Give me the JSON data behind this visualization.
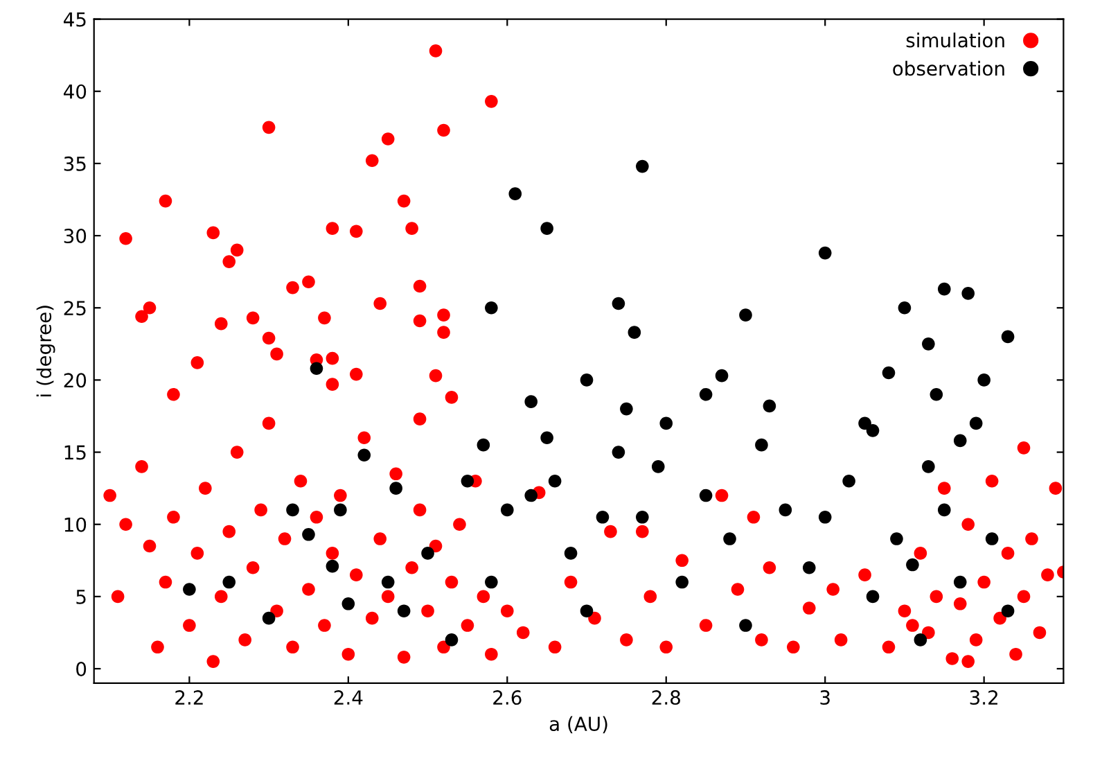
{
  "chart_data": {
    "type": "scatter",
    "xlabel": "a (AU)",
    "ylabel": "i (degree)",
    "xlim": [
      2.08,
      3.3
    ],
    "ylim": [
      -1,
      45
    ],
    "xticks": [
      2.2,
      2.4,
      2.6,
      2.8,
      {
        "value": 3,
        "label": "3"
      },
      3.2
    ],
    "yticks": [
      0,
      5,
      10,
      15,
      20,
      25,
      30,
      35,
      40,
      45
    ],
    "grid": false,
    "legend": "top right",
    "marker": "circle",
    "series": [
      {
        "name": "simulation",
        "color": "#ff0000",
        "x": [
          2.17,
          2.12,
          2.23,
          2.3,
          2.26,
          2.25,
          2.14,
          2.15,
          2.18,
          2.21,
          2.24,
          2.28,
          2.3,
          2.31,
          2.33,
          2.35,
          2.36,
          2.37,
          2.38,
          2.38,
          2.41,
          2.41,
          2.38,
          2.43,
          2.45,
          2.47,
          2.48,
          2.51,
          2.52,
          2.58,
          2.44,
          2.49,
          2.49,
          2.52,
          2.52,
          2.51,
          2.53,
          2.49,
          2.1,
          2.11,
          2.12,
          2.14,
          2.15,
          2.16,
          2.17,
          2.18,
          2.2,
          2.21,
          2.22,
          2.23,
          2.24,
          2.25,
          2.26,
          2.27,
          2.28,
          2.29,
          2.3,
          2.31,
          2.32,
          2.33,
          2.34,
          2.35,
          2.36,
          2.37,
          2.38,
          2.39,
          2.4,
          2.41,
          2.42,
          2.43,
          2.44,
          2.45,
          2.46,
          2.47,
          2.48,
          2.49,
          2.5,
          2.51,
          2.52,
          2.53,
          2.54,
          2.55,
          2.56,
          2.57,
          2.58,
          2.6,
          2.62,
          2.64,
          2.66,
          2.68,
          2.71,
          2.73,
          2.75,
          2.77,
          2.78,
          2.8,
          2.82,
          2.85,
          2.87,
          2.89,
          2.91,
          2.92,
          2.93,
          2.96,
          2.98,
          3.01,
          3.02,
          3.05,
          3.08,
          3.1,
          3.12,
          3.13,
          3.14,
          3.15,
          3.16,
          3.17,
          3.18,
          3.19,
          3.2,
          3.21,
          3.22,
          3.23,
          3.24,
          3.25,
          3.26,
          3.27,
          3.28,
          3.29,
          3.3,
          3.25,
          3.18,
          3.11
        ],
        "values": [
          32.4,
          29.8,
          30.2,
          37.5,
          29,
          28.2,
          24.4,
          25,
          19,
          21.2,
          23.9,
          24.3,
          22.9,
          21.8,
          26.4,
          26.8,
          21.4,
          24.3,
          21.5,
          19.7,
          20.4,
          30.3,
          30.5,
          35.2,
          36.7,
          32.4,
          30.5,
          42.8,
          37.3,
          39.3,
          25.3,
          26.5,
          24.1,
          24.5,
          23.3,
          20.3,
          18.8,
          17.3,
          12,
          5,
          10,
          14,
          8.5,
          1.5,
          6,
          10.5,
          3,
          8,
          12.5,
          0.5,
          5,
          9.5,
          15,
          2,
          7,
          11,
          17,
          4,
          9,
          1.5,
          13,
          5.5,
          10.5,
          3,
          8,
          12,
          1,
          6.5,
          16,
          3.5,
          9,
          5,
          13.5,
          0.8,
          7,
          11,
          4,
          8.5,
          1.5,
          6,
          10,
          3,
          13,
          5,
          1,
          4,
          2.5,
          12.2,
          1.5,
          6,
          3.5,
          9.5,
          2,
          9.5,
          5,
          1.5,
          7.5,
          3,
          12,
          5.5,
          10.5,
          2,
          7,
          1.5,
          4.2,
          5.5,
          2,
          6.5,
          1.5,
          4,
          8,
          2.5,
          5,
          12.5,
          0.7,
          4.5,
          10,
          2,
          6,
          13,
          3.5,
          8,
          1,
          5,
          9,
          2.5,
          6.5,
          12.5,
          6.7,
          15.3,
          0.5,
          3
        ]
      },
      {
        "name": "observation",
        "color": "#000000",
        "x": [
          2.77,
          2.61,
          2.65,
          3.0,
          3.15,
          3.18,
          2.74,
          2.76,
          2.9,
          3.1,
          2.87,
          2.58,
          2.63,
          2.7,
          2.75,
          2.8,
          2.85,
          2.93,
          3.05,
          3.08,
          3.14,
          3.2,
          3.13,
          3.17,
          2.36,
          2.42,
          2.38,
          2.35,
          2.39,
          2.4,
          2.45,
          2.47,
          2.5,
          2.55,
          2.58,
          2.6,
          2.63,
          2.66,
          2.68,
          2.7,
          2.72,
          2.77,
          2.79,
          2.82,
          2.85,
          2.88,
          2.9,
          2.95,
          2.98,
          3.0,
          3.03,
          3.06,
          3.09,
          3.11,
          3.12,
          3.13,
          3.15,
          3.17,
          3.19,
          3.21,
          3.23,
          2.25,
          2.3,
          2.33,
          2.53,
          2.57,
          2.65,
          2.74,
          2.92,
          3.06,
          3.23,
          2.46,
          2.2
        ],
        "values": [
          34.8,
          32.9,
          30.5,
          28.8,
          26.3,
          26,
          25.3,
          23.3,
          24.5,
          25,
          20.3,
          25,
          18.5,
          20,
          18,
          17,
          19,
          18.2,
          17,
          20.5,
          19,
          20,
          22.5,
          15.8,
          20.8,
          14.8,
          7.1,
          9.3,
          11,
          4.5,
          6,
          4,
          8,
          13,
          6,
          11,
          12,
          13,
          8,
          4,
          10.5,
          10.5,
          14,
          6,
          12,
          9,
          3,
          11,
          7,
          10.5,
          13,
          5,
          9,
          7.2,
          2,
          14,
          11,
          6,
          17,
          9,
          4,
          6,
          3.5,
          11,
          2,
          15.5,
          16,
          15,
          15.5,
          16.5,
          23,
          12.5,
          5.5
        ]
      }
    ]
  }
}
